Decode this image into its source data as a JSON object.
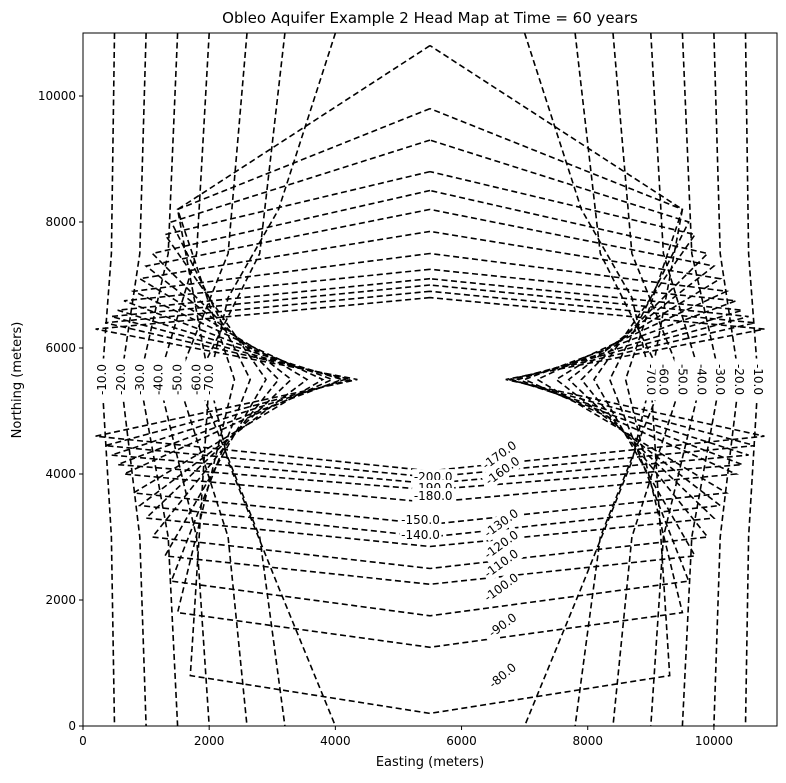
{
  "chart_data": {
    "type": "contour",
    "title": "Obleo Aquifer Example 2 Head Map at Time = 60 years",
    "xlabel": "Easting (meters)",
    "ylabel": "Northing (meters)",
    "xlim": [
      0,
      11000
    ],
    "ylim": [
      0,
      11000
    ],
    "xticks": [
      0,
      2000,
      4000,
      6000,
      8000,
      10000
    ],
    "yticks": [
      0,
      2000,
      4000,
      6000,
      8000,
      10000
    ],
    "grid": false,
    "line_style": "dashed",
    "line_color": "#000000",
    "well_center": [
      5500,
      5500
    ],
    "side_contours": [
      {
        "level": -10.0,
        "label": "-10.0",
        "west": [
          [
            500,
            11000
          ],
          [
            450,
            7500
          ],
          [
            300,
            5500
          ],
          [
            450,
            3000
          ],
          [
            500,
            0
          ]
        ],
        "east": [
          [
            10500,
            11000
          ],
          [
            10550,
            7500
          ],
          [
            10700,
            5500
          ],
          [
            10550,
            3000
          ],
          [
            10500,
            0
          ]
        ]
      },
      {
        "level": -20.0,
        "label": "-20.0",
        "west": [
          [
            1000,
            11000
          ],
          [
            900,
            7500
          ],
          [
            600,
            5500
          ],
          [
            900,
            3000
          ],
          [
            1000,
            0
          ]
        ],
        "east": [
          [
            10000,
            11000
          ],
          [
            10100,
            7500
          ],
          [
            10400,
            5500
          ],
          [
            10100,
            3000
          ],
          [
            10000,
            0
          ]
        ]
      },
      {
        "level": -30.0,
        "label": "-30.0",
        "west": [
          [
            1500,
            11000
          ],
          [
            1350,
            7500
          ],
          [
            900,
            5500
          ],
          [
            1350,
            3000
          ],
          [
            1500,
            0
          ]
        ],
        "east": [
          [
            9500,
            11000
          ],
          [
            9650,
            7500
          ],
          [
            10100,
            5500
          ],
          [
            9650,
            3000
          ],
          [
            9500,
            0
          ]
        ]
      },
      {
        "level": -40.0,
        "label": "-40.0",
        "west": [
          [
            2000,
            11000
          ],
          [
            1800,
            7500
          ],
          [
            1200,
            5500
          ],
          [
            1800,
            3000
          ],
          [
            2000,
            0
          ]
        ],
        "east": [
          [
            9000,
            11000
          ],
          [
            9200,
            7500
          ],
          [
            9800,
            5500
          ],
          [
            9200,
            3000
          ],
          [
            9000,
            0
          ]
        ]
      },
      {
        "level": -50.0,
        "label": "-50.0",
        "west": [
          [
            2600,
            11000
          ],
          [
            2300,
            7500
          ],
          [
            1500,
            5500
          ],
          [
            2300,
            3000
          ],
          [
            2600,
            0
          ]
        ],
        "east": [
          [
            8400,
            11000
          ],
          [
            8700,
            7500
          ],
          [
            9500,
            5500
          ],
          [
            8700,
            3000
          ],
          [
            8400,
            0
          ]
        ]
      },
      {
        "level": -60.0,
        "label": "-60.0",
        "west": [
          [
            3200,
            11000
          ],
          [
            2800,
            7500
          ],
          [
            1800,
            5500
          ],
          [
            2800,
            3000
          ],
          [
            3200,
            0
          ]
        ],
        "east": [
          [
            7800,
            11000
          ],
          [
            8200,
            7500
          ],
          [
            9200,
            5500
          ],
          [
            8200,
            3000
          ],
          [
            7800,
            0
          ]
        ]
      },
      {
        "level": -70.0,
        "label": "-70.0",
        "west": [
          [
            4000,
            11000
          ],
          [
            3100,
            8200
          ],
          [
            2300,
            6800
          ],
          [
            2000,
            5500
          ],
          [
            2300,
            4200
          ],
          [
            3100,
            2200
          ],
          [
            4000,
            0
          ]
        ],
        "east": [
          [
            7000,
            11000
          ],
          [
            7900,
            8200
          ],
          [
            8700,
            6800
          ],
          [
            9000,
            5500
          ],
          [
            8700,
            4200
          ],
          [
            7900,
            2200
          ],
          [
            7000,
            0
          ]
        ]
      }
    ],
    "rings": [
      {
        "level": -80.0,
        "label": "-80.0",
        "north": 10800,
        "south": 200,
        "west": 2000,
        "east": 9000,
        "upper": [
          8200,
          4000
        ],
        "lower": [
          800,
          3800
        ]
      },
      {
        "level": -90.0,
        "label": "-90.0",
        "north": 9800,
        "south": 1250,
        "west": 2400,
        "east": 8600,
        "upper": [
          8200,
          4000
        ],
        "lower": [
          1800,
          4000
        ]
      },
      {
        "level": -100.0,
        "label": "-100.0",
        "north": 9300,
        "south": 1750,
        "west": 2650,
        "east": 8350,
        "upper": [
          8000,
          4100
        ],
        "lower": [
          2300,
          4100
        ]
      },
      {
        "level": -110.0,
        "label": "-110.0",
        "north": 8800,
        "south": 2250,
        "west": 2900,
        "east": 8100,
        "upper": [
          7800,
          4200
        ],
        "lower": [
          2700,
          4200
        ]
      },
      {
        "level": -120.0,
        "label": "-120.0",
        "north": 8500,
        "south": 2500,
        "west": 3100,
        "east": 7900,
        "upper": [
          7500,
          4400
        ],
        "lower": [
          3000,
          4400
        ]
      },
      {
        "level": -130.0,
        "label": "-130.0",
        "north": 8200,
        "south": 2850,
        "west": 3300,
        "east": 7700,
        "upper": [
          7300,
          4500
        ],
        "lower": [
          3300,
          4500
        ]
      },
      {
        "level": -140.0,
        "label": "-140.0",
        "north": 7850,
        "south": 3000,
        "west": 3550,
        "east": 7500,
        "upper": [
          7100,
          4600
        ],
        "lower": [
          3500,
          4600
        ]
      },
      {
        "level": -150.0,
        "label": "-150.0",
        "north": 7500,
        "south": 3200,
        "west": 3800,
        "east": 7200,
        "upper": [
          6900,
          4700
        ],
        "lower": [
          3700,
          4700
        ]
      },
      {
        "level": -160.0,
        "label": "-160.0",
        "north": 7250,
        "south": 3550,
        "west": 3950,
        "east": 7000,
        "upper": [
          6750,
          4850
        ],
        "lower": [
          4000,
          4850
        ]
      },
      {
        "level": -170.0,
        "label": "-170.0",
        "north": 7100,
        "south": 3750,
        "west": 4100,
        "east": 6900,
        "upper": [
          6600,
          4950
        ],
        "lower": [
          4150,
          4950
        ]
      },
      {
        "level": -180.0,
        "label": "-180.0",
        "north": 7000,
        "south": 3850,
        "west": 4150,
        "east": 6800,
        "upper": [
          6500,
          5050
        ],
        "lower": [
          4300,
          5050
        ]
      },
      {
        "level": -190.0,
        "label": "-190.0",
        "north": 6900,
        "south": 3950,
        "west": 4250,
        "east": 6750,
        "upper": [
          6400,
          5150
        ],
        "lower": [
          4450,
          5150
        ]
      },
      {
        "level": -200.0,
        "label": "-200.0",
        "north": 6800,
        "south": 4050,
        "west": 4350,
        "east": 6700,
        "upper": [
          6300,
          5300
        ],
        "lower": [
          4600,
          5300
        ]
      }
    ],
    "inline_labels": [
      {
        "text": "-10.0",
        "x": 300,
        "y": 5500,
        "rotate": -90
      },
      {
        "text": "-20.0",
        "x": 600,
        "y": 5500,
        "rotate": -90
      },
      {
        "text": "-30.0",
        "x": 900,
        "y": 5500,
        "rotate": -90
      },
      {
        "text": "-40.0",
        "x": 1200,
        "y": 5500,
        "rotate": -90
      },
      {
        "text": "-50.0",
        "x": 1500,
        "y": 5500,
        "rotate": -90
      },
      {
        "text": "-60.0",
        "x": 1800,
        "y": 5500,
        "rotate": -90
      },
      {
        "text": "-70.0",
        "x": 2000,
        "y": 5500,
        "rotate": -90
      },
      {
        "text": "-70.0",
        "x": 9000,
        "y": 5500,
        "rotate": 90
      },
      {
        "text": "-60.0",
        "x": 9200,
        "y": 5500,
        "rotate": 90
      },
      {
        "text": "-50.0",
        "x": 9500,
        "y": 5500,
        "rotate": 90
      },
      {
        "text": "-40.0",
        "x": 9800,
        "y": 5500,
        "rotate": 90
      },
      {
        "text": "-30.0",
        "x": 10100,
        "y": 5500,
        "rotate": 90
      },
      {
        "text": "-20.0",
        "x": 10400,
        "y": 5500,
        "rotate": 90
      },
      {
        "text": "-10.0",
        "x": 10700,
        "y": 5500,
        "rotate": 90
      },
      {
        "text": "-200.0",
        "x": 5550,
        "y": 3950,
        "rotate": 0
      },
      {
        "text": "-190.0",
        "x": 5550,
        "y": 3780,
        "rotate": 0
      },
      {
        "text": "-180.0",
        "x": 5550,
        "y": 3650,
        "rotate": 0
      },
      {
        "text": "-150.0",
        "x": 5350,
        "y": 3270,
        "rotate": 0
      },
      {
        "text": "-140.0",
        "x": 5350,
        "y": 3030,
        "rotate": 0
      },
      {
        "text": "-170.0",
        "x": 6600,
        "y": 4300,
        "rotate": -36
      },
      {
        "text": "-160.0",
        "x": 6650,
        "y": 4050,
        "rotate": -36
      },
      {
        "text": "-130.0",
        "x": 6630,
        "y": 3220,
        "rotate": -36
      },
      {
        "text": "-120.0",
        "x": 6630,
        "y": 2880,
        "rotate": -36
      },
      {
        "text": "-110.0",
        "x": 6630,
        "y": 2580,
        "rotate": -36
      },
      {
        "text": "-100.0",
        "x": 6630,
        "y": 2200,
        "rotate": -36
      },
      {
        "text": "-90.0",
        "x": 6650,
        "y": 1600,
        "rotate": -36
      },
      {
        "text": "-80.0",
        "x": 6650,
        "y": 800,
        "rotate": -40
      }
    ]
  }
}
